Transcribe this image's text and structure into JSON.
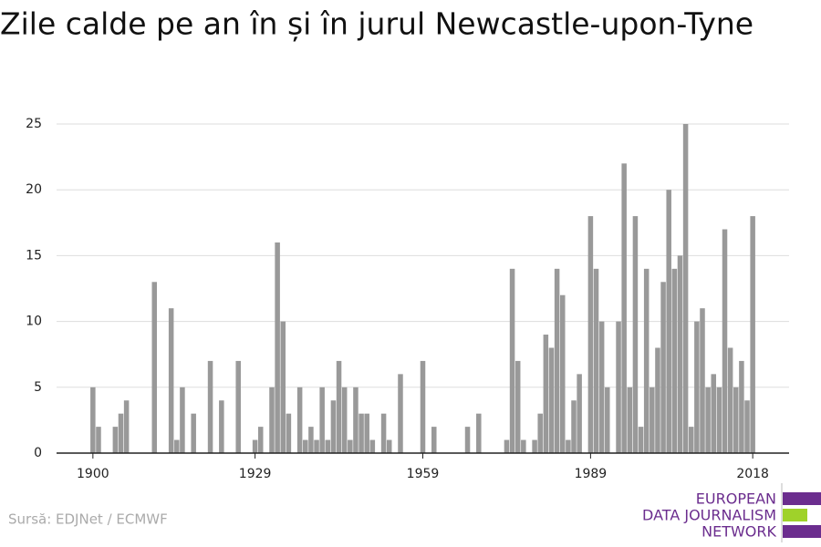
{
  "chart_data": {
    "type": "bar",
    "title": "Zile calde pe an în și în jurul Newcastle-upon-Tyne",
    "source": "Sursă: EDJNet / ECMWF",
    "logo": [
      "EUROPEAN",
      "DATA JOURNALISM",
      "NETWORK"
    ],
    "color": "#999999",
    "x": [
      1900,
      1901,
      1904,
      1905,
      1906,
      1911,
      1914,
      1915,
      1916,
      1918,
      1921,
      1923,
      1926,
      1929,
      1930,
      1932,
      1933,
      1934,
      1935,
      1937,
      1938,
      1939,
      1940,
      1941,
      1942,
      1943,
      1944,
      1945,
      1946,
      1947,
      1948,
      1949,
      1950,
      1952,
      1953,
      1955,
      1959,
      1961,
      1967,
      1969,
      1974,
      1975,
      1976,
      1977,
      1979,
      1980,
      1981,
      1982,
      1983,
      1984,
      1985,
      1986,
      1987,
      1989,
      1990,
      1991,
      1992,
      1994,
      1995,
      1996,
      1997,
      1998,
      1999,
      2000,
      2001,
      2002,
      2003,
      2004,
      2005,
      2006,
      2007,
      2008,
      2009,
      2010,
      2011,
      2012,
      2013,
      2014,
      2015,
      2016,
      2017,
      2018
    ],
    "values": [
      5,
      2,
      2,
      3,
      4,
      13,
      11,
      1,
      5,
      3,
      7,
      4,
      7,
      1,
      2,
      5,
      16,
      10,
      3,
      5,
      1,
      2,
      1,
      5,
      1,
      4,
      7,
      5,
      1,
      5,
      3,
      3,
      1,
      3,
      1,
      6,
      7,
      2,
      2,
      3,
      1,
      14,
      7,
      1,
      1,
      3,
      9,
      8,
      14,
      12,
      1,
      4,
      6,
      18,
      14,
      10,
      5,
      10,
      22,
      5,
      18,
      2,
      14,
      5,
      8,
      13,
      20,
      14,
      15,
      25,
      2,
      10,
      11,
      5,
      6,
      5,
      17,
      8,
      5,
      7,
      4,
      18
    ],
    "xlim": [
      1893.5,
      2024.5
    ],
    "xticks": [
      1900,
      1929,
      1959,
      1989,
      2018
    ],
    "ylim": [
      0,
      25
    ],
    "yticks": [
      0,
      5,
      10,
      15,
      20,
      25
    ],
    "grid": true
  }
}
